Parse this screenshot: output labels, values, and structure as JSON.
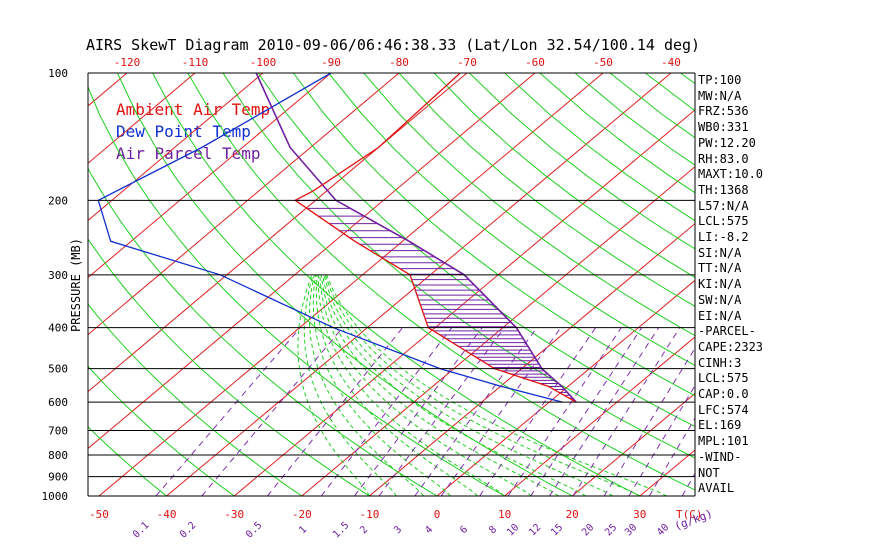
{
  "chart_data": {
    "type": "line",
    "title": "AIRS SkewT Diagram 2010-09-06/06:46:38.33 (Lat/Lon 32.54/100.14 deg)",
    "ylabel": "PRESSURE (MB)",
    "y_axis": {
      "scale": "log",
      "reversed": true,
      "ylim": [
        1000,
        100
      ],
      "ticks": [
        100,
        200,
        300,
        400,
        500,
        600,
        700,
        800,
        900,
        1000
      ]
    },
    "top_temp_ticks": [
      -120,
      -110,
      -100,
      -90,
      -80,
      -70,
      -60,
      -50,
      -40
    ],
    "bottom_temp_ticks": [
      -50,
      -40,
      -30,
      -20,
      -10,
      0,
      10,
      20,
      30
    ],
    "bottom_temp_unit": "T(C)",
    "mixing_ratio_ticks": [
      "0.1",
      "0.2",
      "0.5",
      "1",
      "1.5",
      "2",
      "3",
      "4",
      "6",
      "8",
      "10",
      "12",
      "15",
      "20",
      "25",
      "30",
      "40"
    ],
    "mixing_ratio_unit": "(g/kg)",
    "legend": [
      {
        "name": "Ambient Air Temp",
        "color": "#e01010"
      },
      {
        "name": "Dew Point Temp",
        "color": "#1030d0"
      },
      {
        "name": "Air Parcel Temp",
        "color": "#7020a0"
      }
    ],
    "grid": true,
    "series": [
      {
        "name": "Ambient Air Temp",
        "color": "#e01010",
        "points": [
          [
            100,
            -71
          ],
          [
            150,
            -70
          ],
          [
            190,
            -72
          ],
          [
            200,
            -73
          ],
          [
            250,
            -57
          ],
          [
            300,
            -43
          ],
          [
            400,
            -31
          ],
          [
            500,
            -14
          ],
          [
            550,
            -3
          ],
          [
            600,
            4
          ]
        ]
      },
      {
        "name": "Dew Point Temp",
        "color": "#1030d0",
        "points": [
          [
            100,
            -90
          ],
          [
            150,
            -96
          ],
          [
            200,
            -102
          ],
          [
            250,
            -93
          ],
          [
            300,
            -71
          ],
          [
            400,
            -45
          ],
          [
            500,
            -22
          ],
          [
            550,
            -10
          ],
          [
            600,
            2
          ]
        ]
      },
      {
        "name": "Air Parcel Temp",
        "color": "#7020a0",
        "points": [
          [
            100,
            -101
          ],
          [
            150,
            -83
          ],
          [
            200,
            -67
          ],
          [
            250,
            -49
          ],
          [
            300,
            -35
          ],
          [
            400,
            -18
          ],
          [
            500,
            -7
          ],
          [
            550,
            -1
          ],
          [
            600,
            4
          ]
        ]
      }
    ],
    "side_panel": [
      "TP:100",
      "MW:N/A",
      "FRZ:536",
      "WB0:331",
      "PW:12.20",
      "RH:83.0",
      "MAXT:10.0",
      "TH:1368",
      "L57:N/A",
      "LCL:575",
      "LI:-8.2",
      "SI:N/A",
      "TT:N/A",
      "KI:N/A",
      "SW:N/A",
      "EI:N/A",
      "-PARCEL-",
      "CAPE:2323",
      "CINH:3",
      "LCL:575",
      "CAP:0.0",
      "LFC:574",
      "EL:169",
      "MPL:101",
      "-WIND-",
      "NOT",
      "AVAIL"
    ]
  }
}
